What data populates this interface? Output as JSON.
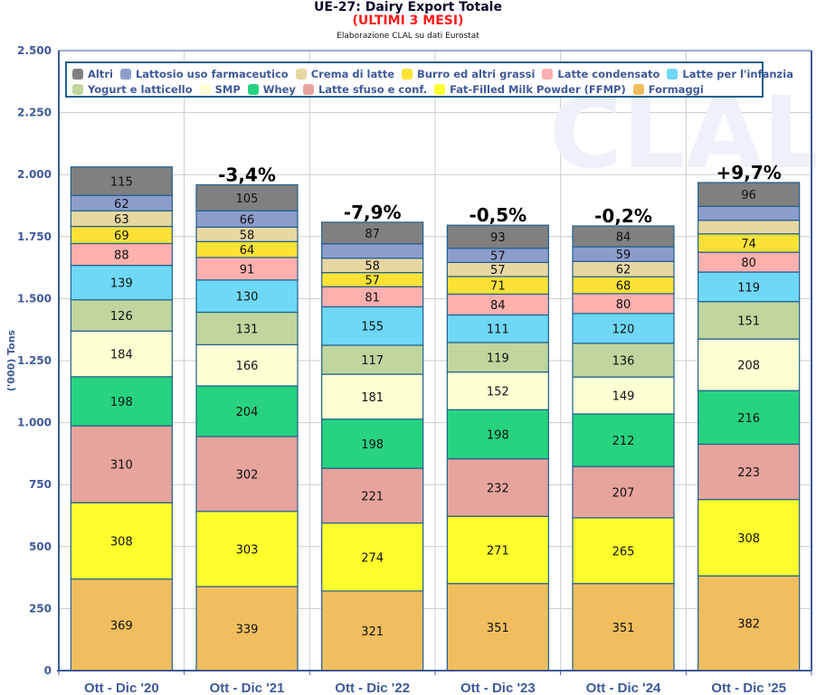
{
  "header": {
    "title": "UE-27: Dairy Export Totale",
    "subtitle": "(ULTIMI 3 MESI)",
    "source": "Elaborazione CLAL su dati Eurostat"
  },
  "watermark": "CLAL",
  "chart_data": {
    "type": "bar",
    "stacked": true,
    "title": "UE-27: Dairy Export Totale",
    "subtitle": "(ULTIMI 3 MESI)",
    "xlabel": "",
    "ylabel": "('000) Tons",
    "ylim": [
      0,
      2500
    ],
    "yticks": [
      0,
      250,
      500,
      750,
      1000,
      1250,
      1500,
      1750,
      2000,
      2250,
      2500
    ],
    "ytick_labels": [
      "0",
      "250",
      "500",
      "750",
      "1.000",
      "1.250",
      "1.500",
      "1.750",
      "2.000",
      "2.250",
      "2.500"
    ],
    "grid": true,
    "legend_position": "top",
    "categories": [
      "Ott - Dic '20",
      "Ott - Dic '21",
      "Ott - Dic '22",
      "Ott - Dic '23",
      "Ott - Dic '24",
      "Ott - Dic '25"
    ],
    "changes": [
      "",
      "-3,4%",
      "-7,9%",
      "-0,5%",
      "-0,2%",
      "+9,7%"
    ],
    "legend_order": [
      "Altri",
      "Lattosio uso farmaceutico",
      "Crema di latte",
      "Burro ed altri grassi",
      "Latte condensato",
      "Latte per l'infanzia",
      "Yogurt e latticello",
      "SMP",
      "Whey",
      "Latte sfuso e conf.",
      "Fat-Filled Milk Powder (FFMP)",
      "Formaggi"
    ],
    "series": [
      {
        "name": "Formaggi",
        "color": "#f0be5e",
        "values": [
          369,
          339,
          321,
          351,
          351,
          382
        ],
        "labels": [
          "369",
          "339",
          "321",
          "351",
          "351",
          "382"
        ]
      },
      {
        "name": "Fat-Filled Milk Powder (FFMP)",
        "color": "#ffff2e",
        "values": [
          308,
          303,
          274,
          271,
          265,
          308
        ],
        "labels": [
          "308",
          "303",
          "274",
          "271",
          "265",
          "308"
        ]
      },
      {
        "name": "Latte sfuso e conf.",
        "color": "#e6a49c",
        "values": [
          310,
          302,
          221,
          232,
          207,
          223
        ],
        "labels": [
          "310",
          "302",
          "221",
          "232",
          "207",
          "223"
        ]
      },
      {
        "name": "Whey",
        "color": "#27d37f",
        "values": [
          198,
          204,
          198,
          198,
          212,
          216
        ],
        "labels": [
          "198",
          "204",
          "198",
          "198",
          "212",
          "216"
        ]
      },
      {
        "name": "SMP",
        "color": "#ffffd4",
        "values": [
          184,
          166,
          181,
          152,
          149,
          208
        ],
        "labels": [
          "184",
          "166",
          "181",
          "152",
          "149",
          "208"
        ]
      },
      {
        "name": "Yogurt e latticello",
        "color": "#c0d69e",
        "values": [
          126,
          131,
          117,
          119,
          136,
          151
        ],
        "labels": [
          "126",
          "131",
          "117",
          "119",
          "136",
          "151"
        ]
      },
      {
        "name": "Latte per l'infanzia",
        "color": "#6fd8f6",
        "values": [
          139,
          130,
          155,
          111,
          120,
          119
        ],
        "labels": [
          "139",
          "130",
          "155",
          "111",
          "120",
          "119"
        ]
      },
      {
        "name": "Latte condensato",
        "color": "#feb0ae",
        "values": [
          88,
          91,
          81,
          84,
          80,
          80
        ],
        "labels": [
          "88",
          "91",
          "81",
          "84",
          "80",
          "80"
        ]
      },
      {
        "name": "Burro ed altri grassi",
        "color": "#fde236",
        "values": [
          69,
          64,
          57,
          71,
          68,
          74
        ],
        "labels": [
          "69",
          "64",
          "57",
          "71",
          "68",
          "74"
        ]
      },
      {
        "name": "Crema di latte",
        "color": "#e8d7a2",
        "values": [
          63,
          58,
          58,
          57,
          62,
          55
        ],
        "labels": [
          "63",
          "58",
          "58",
          "57",
          "62",
          ""
        ]
      },
      {
        "name": "Lattosio uso farmaceutico",
        "color": "#8c9dcc",
        "values": [
          62,
          66,
          58,
          57,
          59,
          56
        ],
        "labels": [
          "62",
          "66",
          "",
          "57",
          "59",
          ""
        ]
      },
      {
        "name": "Altri",
        "color": "#808080",
        "values": [
          115,
          105,
          87,
          93,
          84,
          96
        ],
        "labels": [
          "115",
          "105",
          "87",
          "93",
          "84",
          "96"
        ]
      }
    ]
  }
}
